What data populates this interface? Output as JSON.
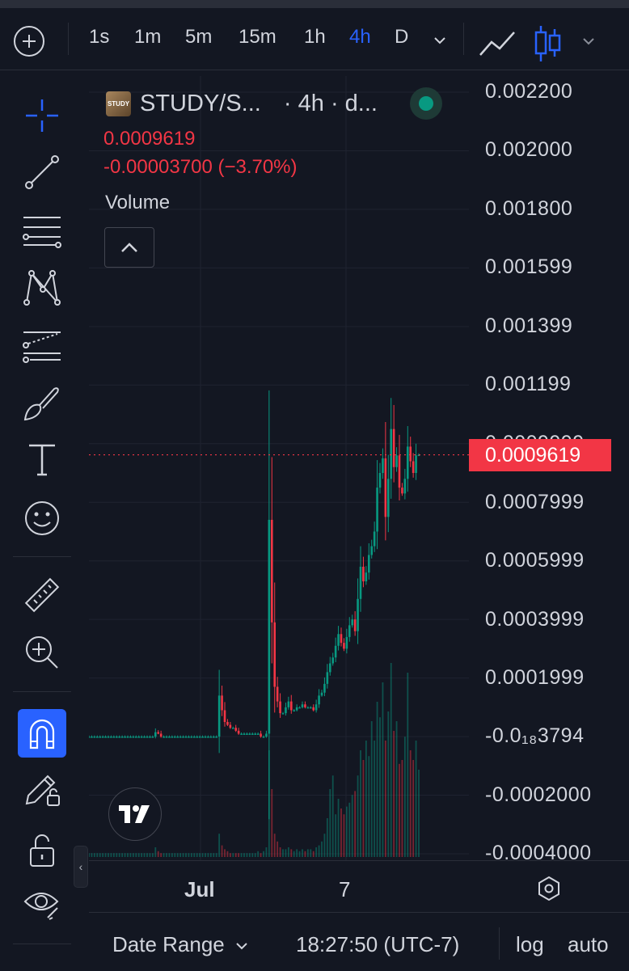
{
  "toolbar": {
    "add_label": "+",
    "intervals": [
      "1s",
      "1m",
      "5m",
      "15m",
      "1h",
      "4h",
      "D"
    ],
    "active_interval": "4h"
  },
  "legend": {
    "symbol": "STUDY/S...",
    "interval_suffix": "· 4h · d...",
    "logo_text": "STUDY",
    "last_price": "0.0009619",
    "change": "-0.00003700 (−3.70%)",
    "volume_label": "Volume",
    "status": "market-open"
  },
  "price_axis": {
    "labels": [
      "0.002200",
      "0.002000",
      "0.001800",
      "0.001599",
      "0.001399",
      "0.001199",
      "0.0009999",
      "0.0007999",
      "0.0005999",
      "0.0003999",
      "0.0001999",
      "-0.0₁₈3794",
      "-0.0002000",
      "-0.0004000"
    ],
    "current_price": "0.0009619"
  },
  "time_axis": {
    "labels": [
      "Jul",
      "7"
    ]
  },
  "bottom_bar": {
    "date_range": "Date Range",
    "clock": "18:27:50 (UTC-7)",
    "log": "log",
    "auto": "auto"
  },
  "colors": {
    "background": "#131722",
    "up": "#089981",
    "down": "#f23645",
    "accent": "#2962ff",
    "grid": "#1f2330",
    "text": "#d1d4dc"
  },
  "chart_data": {
    "type": "candlestick",
    "symbol": "STUDY/S...",
    "interval": "4h",
    "ylim": [
      -0.0004,
      0.0022
    ],
    "last_price": 0.0009619,
    "x_ticks": [
      "Jul",
      "7"
    ],
    "close_series": [
      0,
      0,
      0,
      0,
      0,
      0,
      0,
      0,
      0,
      0,
      0,
      0,
      0,
      0,
      0,
      0,
      0,
      0,
      0,
      0,
      0,
      0,
      0,
      0,
      1.5e-05,
      1e-05,
      0,
      0,
      0,
      0,
      0,
      0,
      0,
      0,
      0,
      0,
      0,
      0,
      0,
      0,
      0,
      0,
      0,
      0,
      0,
      0,
      0,
      0.00014,
      9e-05,
      5e-05,
      4e-05,
      3e-05,
      3e-05,
      2e-05,
      1e-05,
      1e-05,
      1e-05,
      1e-05,
      1e-05,
      1e-05,
      1e-05,
      1e-05,
      0,
      0,
      1e-05,
      0.00074,
      0.00039,
      0.00017,
      0.00012,
      8e-05,
      8e-05,
      0.0001,
      0.00012,
      9e-05,
      9e-05,
      0.0001,
      0.0001,
      0.00011,
      0.0001,
      0.0001,
      0.0001,
      9e-05,
      0.00011,
      0.00014,
      0.00015,
      0.00018,
      0.00022,
      0.00025,
      0.00027,
      0.00031,
      0.00035,
      0.00032,
      0.0003,
      0.00034,
      0.00038,
      0.0004,
      0.00036,
      0.00047,
      0.00058,
      0.00053,
      0.00056,
      0.00062,
      0.00065,
      0.0007,
      0.00085,
      0.0009,
      0.00095,
      0.00075,
      0.00088,
      0.00105,
      0.00092,
      0.00096,
      0.00085,
      0.00083,
      0.00088,
      0.00099,
      0.00094,
      0.0009,
      0.00096,
      0.0009619
    ],
    "volume_relative": [
      0.02,
      0.02,
      0.02,
      0.02,
      0.02,
      0.02,
      0.02,
      0.02,
      0.02,
      0.02,
      0.02,
      0.02,
      0.02,
      0.02,
      0.02,
      0.02,
      0.02,
      0.02,
      0.02,
      0.02,
      0.02,
      0.02,
      0.02,
      0.02,
      0.05,
      0.03,
      0.02,
      0.02,
      0.02,
      0.02,
      0.02,
      0.02,
      0.02,
      0.02,
      0.02,
      0.02,
      0.02,
      0.02,
      0.02,
      0.02,
      0.02,
      0.02,
      0.02,
      0.02,
      0.02,
      0.02,
      0.02,
      0.12,
      0.06,
      0.04,
      0.03,
      0.02,
      0.02,
      0.02,
      0.02,
      0.02,
      0.02,
      0.02,
      0.02,
      0.02,
      0.02,
      0.03,
      0.02,
      0.03,
      0.05,
      0.55,
      0.35,
      0.12,
      0.08,
      0.05,
      0.04,
      0.04,
      0.05,
      0.04,
      0.03,
      0.04,
      0.03,
      0.04,
      0.03,
      0.04,
      0.04,
      0.03,
      0.05,
      0.06,
      0.08,
      0.12,
      0.2,
      0.35,
      0.42,
      0.22,
      0.3,
      0.25,
      0.22,
      0.26,
      0.28,
      0.32,
      0.34,
      0.42,
      0.55,
      0.5,
      0.6,
      0.52,
      0.7,
      0.6,
      0.8,
      0.72,
      0.9,
      0.6,
      0.75,
      1.0,
      0.65,
      0.7,
      0.48,
      0.5,
      0.62,
      0.95,
      0.55,
      0.5,
      0.6,
      0.45
    ]
  }
}
